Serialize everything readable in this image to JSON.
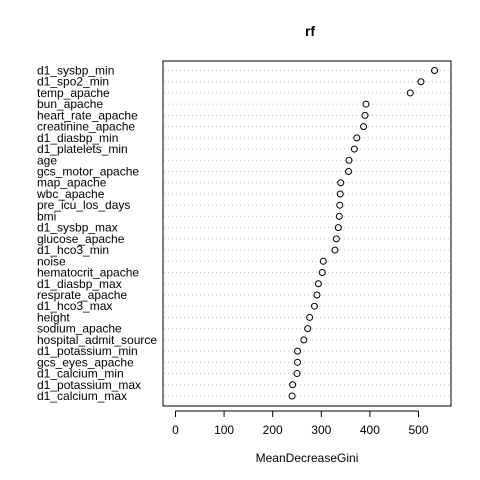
{
  "chart_data": {
    "type": "scatter",
    "title": "rf",
    "xlabel": "MeanDecreaseGini",
    "ylabel": "",
    "xlim": [
      0,
      550
    ],
    "x_ticks": [
      0,
      100,
      200,
      300,
      400,
      500
    ],
    "grid": "dotted horizontal",
    "variables": [
      "d1_sysbp_min",
      "d1_spo2_min",
      "temp_apache",
      "bun_apache",
      "heart_rate_apache",
      "creatinine_apache",
      "d1_diasbp_min",
      "d1_platelets_min",
      "age",
      "gcs_motor_apache",
      "map_apache",
      "wbc_apache",
      "pre_icu_los_days",
      "bmi",
      "d1_sysbp_max",
      "glucose_apache",
      "d1_hco3_min",
      "noise",
      "hematocrit_apache",
      "d1_diasbp_max",
      "resprate_apache",
      "d1_hco3_max",
      "height",
      "sodium_apache",
      "hospital_admit_source",
      "d1_potassium_min",
      "gcs_eyes_apache",
      "d1_calcium_min",
      "d1_potassium_max",
      "d1_calcium_max"
    ],
    "values": [
      533,
      505,
      483,
      392,
      390,
      387,
      373,
      368,
      357,
      356,
      340,
      339,
      338,
      337,
      335,
      331,
      328,
      304,
      302,
      294,
      291,
      286,
      276,
      272,
      264,
      251,
      251,
      250,
      241,
      240
    ]
  }
}
